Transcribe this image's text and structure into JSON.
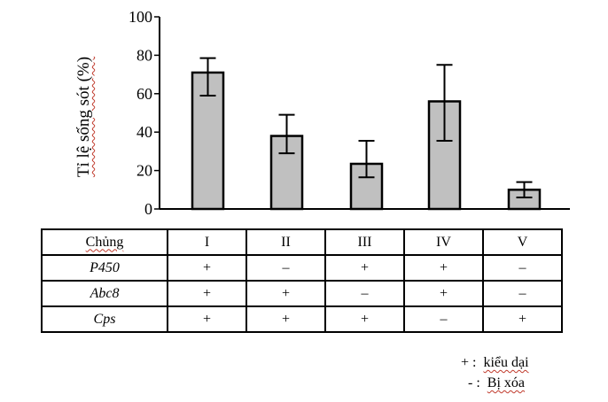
{
  "chart_data": {
    "type": "bar",
    "title": "",
    "xlabel": "",
    "ylabel": "Tỉ lệ sống sót (%)",
    "ylim": [
      0,
      100
    ],
    "yticks": [
      0,
      20,
      40,
      60,
      80,
      100
    ],
    "grid": false,
    "categories": [
      "I",
      "II",
      "III",
      "IV",
      "V"
    ],
    "values": [
      71,
      38,
      23.5,
      56,
      10
    ],
    "error_low": [
      59,
      29,
      16.5,
      35.5,
      6
    ],
    "error_high": [
      78.5,
      49,
      35.5,
      75,
      14
    ],
    "bar_color": "#c0c0c0",
    "edge_color": "#000000"
  },
  "table": {
    "header_label": "Chủng",
    "columns": [
      "I",
      "II",
      "III",
      "IV",
      "V"
    ],
    "rows": [
      {
        "gene": "P450",
        "values": [
          "+",
          "–",
          "+",
          "+",
          "–"
        ]
      },
      {
        "gene": "Abc8",
        "values": [
          "+",
          "+",
          "–",
          "+",
          "–"
        ]
      },
      {
        "gene": "Cps",
        "values": [
          "+",
          "+",
          "+",
          "–",
          "+"
        ]
      }
    ]
  },
  "legend": {
    "plus_symbol": "+ :",
    "plus_label": "kiểu dại",
    "minus_symbol": "- :",
    "minus_label": "Bị xóa"
  }
}
